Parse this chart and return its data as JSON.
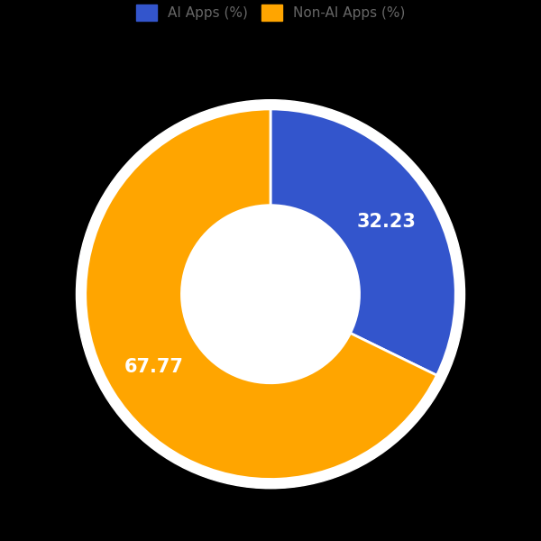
{
  "labels": [
    "AI Apps (%)",
    "Non-AI Apps (%)"
  ],
  "values": [
    32.23,
    67.77
  ],
  "colors": [
    "#3355cc",
    "#FFA500"
  ],
  "autopct_values": [
    "32.23",
    "67.77"
  ],
  "background_color": "#000000",
  "chart_bg_color": "#ffffff",
  "text_color": "#ffffff",
  "wedge_edge_color": "#ffffff",
  "legend_fontsize": 11,
  "autopct_fontsize": 15,
  "figsize": [
    6.0,
    6.0
  ],
  "dpi": 100,
  "donut_width": 0.52,
  "startangle": 90,
  "legend_text_color": "#666666"
}
